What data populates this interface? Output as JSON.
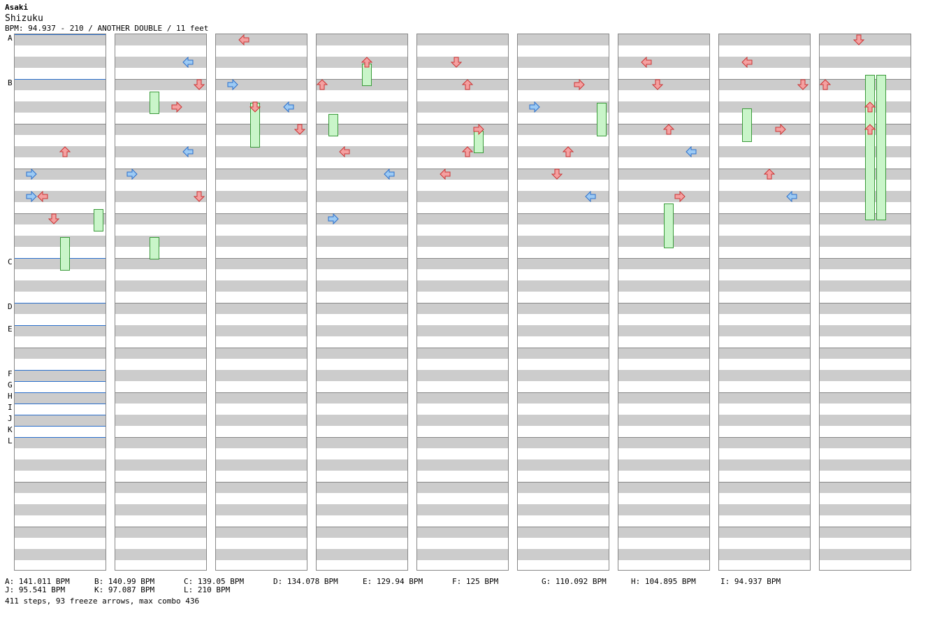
{
  "header": {
    "artist": "Asaki",
    "title": "Shizuku",
    "info": "BPM: 94.937 - 210 / ANOTHER DOUBLE / 11 feet"
  },
  "colors": {
    "red": "#f08080",
    "blue": "#5aa0e6",
    "freeze": "#c9f5c9",
    "band": "#cccccc",
    "bpm_line": "#2a6fcc"
  },
  "markers": [
    "A",
    "B",
    "C",
    "D",
    "E",
    "F",
    "G",
    "H",
    "I",
    "J",
    "K",
    "L"
  ],
  "bpm_legend": [
    "A: 141.011 BPM",
    "B: 140.99 BPM",
    "C: 139.05 BPM",
    "D: 134.078 BPM",
    "E: 129.94 BPM",
    "F: 125 BPM",
    "G: 110.092 BPM",
    "H: 104.895 BPM",
    "I: 94.937 BPM",
    "J: 95.541 BPM",
    "K: 97.087 BPM",
    "L: 210 BPM"
  ],
  "summary": "411 steps, 93 freeze arrows, max combo 436",
  "chart": {
    "lanes": 9,
    "columns_per_lane": 8,
    "column_colors": [
      "red",
      "blue",
      "red",
      "red",
      "red",
      "red",
      "blue",
      "red"
    ],
    "notes": [
      [
        0,
        5,
        4
      ],
      [
        0,
        6,
        1
      ],
      [
        0,
        7,
        2
      ],
      [
        0,
        7,
        1
      ],
      [
        0,
        8,
        3
      ],
      [
        1,
        2,
        7
      ],
      [
        1,
        1,
        6
      ],
      [
        1,
        3,
        5
      ],
      [
        1,
        5,
        6
      ],
      [
        1,
        6,
        1
      ],
      [
        1,
        7,
        7
      ],
      [
        2,
        0,
        2
      ],
      [
        2,
        2,
        1
      ],
      [
        2,
        3,
        3
      ],
      [
        2,
        3,
        6
      ],
      [
        2,
        4,
        7
      ],
      [
        3,
        2,
        0
      ],
      [
        3,
        1,
        4
      ],
      [
        3,
        5,
        2
      ],
      [
        3,
        6,
        6
      ],
      [
        3,
        8,
        1
      ],
      [
        4,
        1,
        3
      ],
      [
        4,
        2,
        4
      ],
      [
        4,
        4,
        5
      ],
      [
        4,
        5,
        4
      ],
      [
        4,
        6,
        2
      ],
      [
        5,
        2,
        5
      ],
      [
        5,
        3,
        1
      ],
      [
        5,
        5,
        4
      ],
      [
        5,
        6,
        3
      ],
      [
        5,
        7,
        6
      ],
      [
        6,
        1,
        2
      ],
      [
        6,
        2,
        3
      ],
      [
        6,
        4,
        4
      ],
      [
        6,
        5,
        6
      ],
      [
        6,
        7,
        5
      ],
      [
        7,
        1,
        2
      ],
      [
        7,
        2,
        7
      ],
      [
        7,
        4,
        5
      ],
      [
        7,
        6,
        4
      ],
      [
        7,
        7,
        6
      ],
      [
        8,
        0,
        3
      ],
      [
        8,
        2,
        0
      ],
      [
        8,
        3,
        4
      ],
      [
        8,
        4,
        4
      ]
    ],
    "freezes": [
      [
        0,
        36,
        3,
        4
      ],
      [
        0,
        31,
        2,
        7
      ],
      [
        1,
        10,
        2,
        3
      ],
      [
        1,
        36,
        2,
        3
      ],
      [
        2,
        12,
        4,
        3
      ],
      [
        3,
        5,
        2,
        4
      ],
      [
        3,
        14,
        2,
        1
      ],
      [
        4,
        17,
        2,
        5
      ],
      [
        5,
        12,
        3,
        7
      ],
      [
        6,
        30,
        4,
        4
      ],
      [
        7,
        13,
        3,
        2
      ],
      [
        8,
        7,
        13,
        4
      ],
      [
        8,
        7,
        13,
        5
      ]
    ]
  }
}
